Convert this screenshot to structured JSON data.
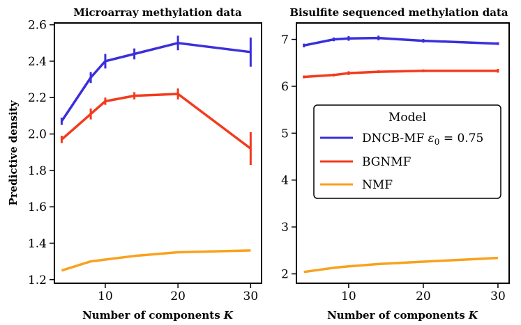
{
  "chart_data": [
    {
      "type": "line",
      "title": "Microarray methylation data",
      "xlabel": "Number of components K",
      "ylabel": "Predictive density",
      "xlim": [
        3,
        31.5
      ],
      "ylim": [
        1.18,
        2.61
      ],
      "xticks": [
        10,
        20,
        30
      ],
      "yticks": [
        1.2,
        1.4,
        1.6,
        1.8,
        2.0,
        2.2,
        2.4,
        2.6
      ],
      "ytick_labels": [
        "1.2",
        "1.4",
        "1.6",
        "1.8",
        "2.0",
        "2.2",
        "2.4",
        "2.6"
      ],
      "x": [
        4,
        8,
        10,
        14,
        20,
        30
      ],
      "series": [
        {
          "name": "DNCB-MF ε0 = 0.75",
          "color": "#3b2fdb",
          "values": [
            2.07,
            2.31,
            2.4,
            2.44,
            2.5,
            2.45
          ],
          "errors": [
            0.02,
            0.03,
            0.04,
            0.03,
            0.04,
            0.08
          ]
        },
        {
          "name": "BGNMF",
          "color": "#f23b1d",
          "values": [
            1.97,
            2.11,
            2.18,
            2.21,
            2.22,
            1.92
          ],
          "errors": [
            0.02,
            0.03,
            0.02,
            0.02,
            0.03,
            0.09
          ]
        },
        {
          "name": "NMF",
          "color": "#f8a21d",
          "values": [
            1.25,
            1.3,
            1.31,
            1.33,
            1.35,
            1.36
          ],
          "errors": [
            0,
            0,
            0,
            0,
            0,
            0
          ]
        }
      ]
    },
    {
      "type": "line",
      "title": "Bisulfite sequenced methylation data",
      "xlabel": "Number of components K",
      "ylabel": "",
      "xlim": [
        3,
        31.5
      ],
      "ylim": [
        1.8,
        7.35
      ],
      "xticks": [
        10,
        20,
        30
      ],
      "yticks": [
        2,
        3,
        4,
        5,
        6,
        7
      ],
      "ytick_labels": [
        "2",
        "3",
        "4",
        "5",
        "6",
        "7"
      ],
      "x": [
        4,
        8,
        10,
        14,
        20,
        30
      ],
      "series": [
        {
          "name": "DNCB-MF ε0 = 0.75",
          "color": "#3b2fdb",
          "values": [
            6.87,
            7.0,
            7.02,
            7.03,
            6.97,
            6.91
          ],
          "errors": [
            0.04,
            0.04,
            0.05,
            0.05,
            0.04,
            0.03
          ]
        },
        {
          "name": "BGNMF",
          "color": "#f23b1d",
          "values": [
            6.2,
            6.24,
            6.28,
            6.31,
            6.33,
            6.33
          ],
          "errors": [
            0.03,
            0.03,
            0.04,
            0.03,
            0.03,
            0.04
          ]
        },
        {
          "name": "NMF",
          "color": "#f8a21d",
          "values": [
            2.04,
            2.13,
            2.16,
            2.21,
            2.26,
            2.34
          ],
          "errors": [
            0,
            0,
            0,
            0,
            0,
            0
          ]
        }
      ],
      "legend": {
        "title": "Model",
        "placement": "center-right",
        "entries": [
          {
            "label": "DNCB-MF ε0 = 0.75",
            "prefix": "DNCB-MF ",
            "greek": "ε",
            "sub": "0",
            "suffix": " = 0.75",
            "color": "#3b2fdb"
          },
          {
            "label": "BGNMF",
            "color": "#f23b1d"
          },
          {
            "label": "NMF",
            "color": "#f8a21d"
          }
        ]
      }
    }
  ]
}
